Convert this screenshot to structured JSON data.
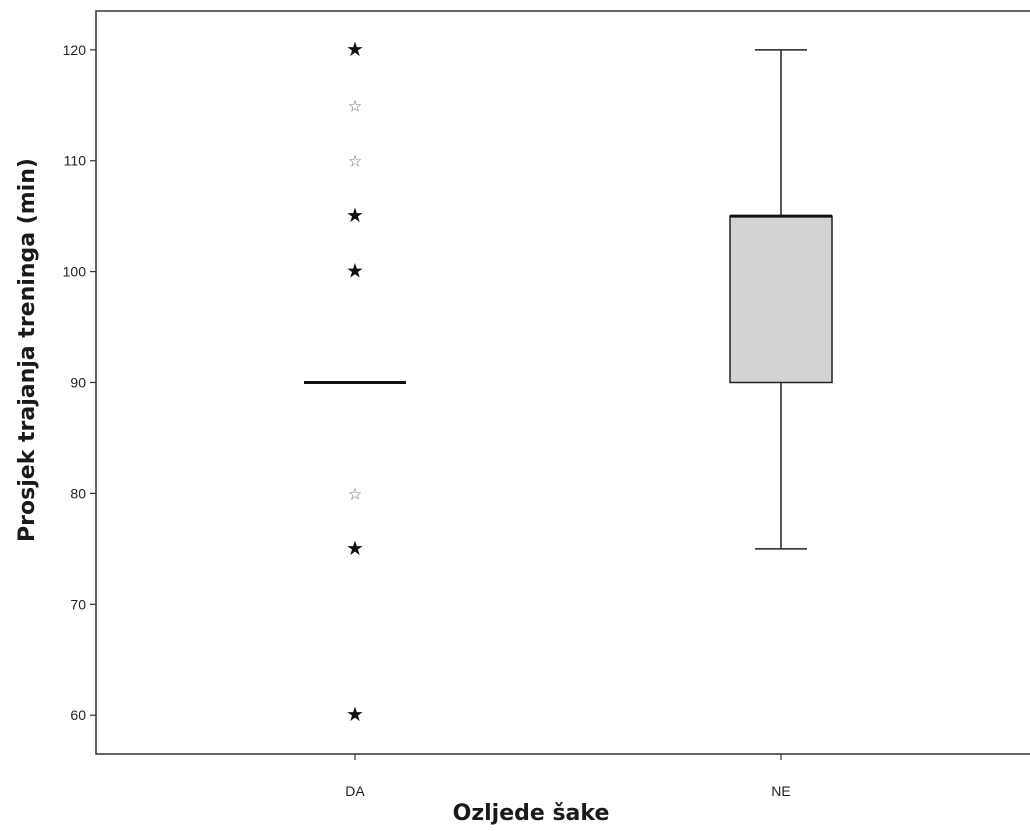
{
  "chart_data": {
    "type": "boxplot",
    "xlabel": "Ozljede šake",
    "ylabel": "Prosjek trajanja treninga (min)",
    "categories": [
      "DA",
      "NE"
    ],
    "ylim": [
      56.5,
      123.5
    ],
    "yticks": [
      60,
      70,
      80,
      90,
      100,
      110,
      120
    ],
    "grid": false,
    "boxes": [
      {
        "category": "DA",
        "min": 90,
        "q1": 90,
        "median": 90,
        "q3": 90,
        "max": 90,
        "outliers": [
          {
            "value": 120,
            "kind": "extreme"
          },
          {
            "value": 115,
            "kind": "outlier"
          },
          {
            "value": 110,
            "kind": "outlier"
          },
          {
            "value": 105,
            "kind": "extreme"
          },
          {
            "value": 100,
            "kind": "extreme"
          },
          {
            "value": 80,
            "kind": "outlier"
          },
          {
            "value": 75,
            "kind": "extreme"
          },
          {
            "value": 60,
            "kind": "extreme"
          }
        ]
      },
      {
        "category": "NE",
        "min": 75,
        "q1": 90,
        "median": 105,
        "q3": 105,
        "max": 120,
        "outliers": []
      }
    ],
    "colors": {
      "box_fill": "#d3d3d3",
      "line": "#222222",
      "extreme": "#111111",
      "outlier": "#666666"
    }
  }
}
